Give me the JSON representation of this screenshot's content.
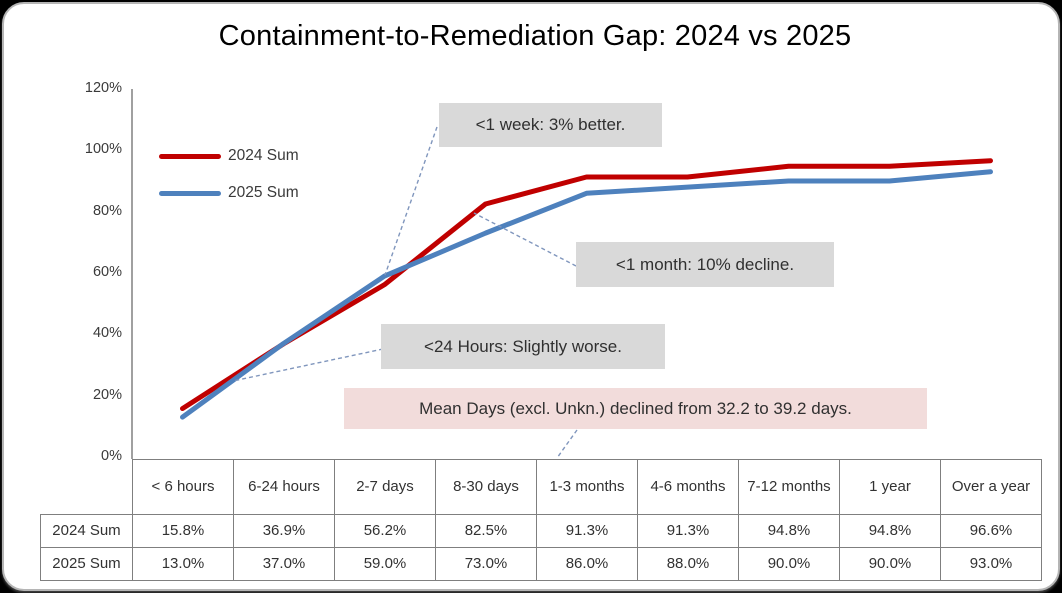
{
  "title": "Containment-to-Remediation Gap: 2024 vs 2025",
  "legend": {
    "items": [
      {
        "label": "2024 Sum",
        "color": "#c00000"
      },
      {
        "label": "2025 Sum",
        "color": "#4e81bd"
      }
    ]
  },
  "annotations": {
    "week": {
      "text": "<1 week: 3% better."
    },
    "month": {
      "text": "<1 month: 10% decline."
    },
    "hours": {
      "text": "<24 Hours: Slightly worse."
    },
    "mean": {
      "text": "Mean Days (excl. Unkn.) declined from 32.2 to 39.2 days."
    }
  },
  "colors": {
    "series_2024": "#c00000",
    "series_2025": "#4e81bd",
    "callout_gray": "#d9d9d9",
    "callout_pink": "#f2dcdb",
    "axis_gray": "#808080",
    "leader_blue": "#8096bd"
  },
  "chart_data": {
    "type": "line",
    "title": "Containment-to-Remediation Gap: 2024 vs 2025",
    "categories": [
      "< 6 hours",
      "6-24 hours",
      "2-7 days",
      "8-30 days",
      "1-3 months",
      "4-6 months",
      "7-12 months",
      "1 year",
      "Over a year"
    ],
    "series": [
      {
        "name": "2024 Sum",
        "color": "#c00000",
        "values": [
          15.8,
          36.9,
          56.2,
          82.5,
          91.3,
          91.3,
          94.8,
          94.8,
          96.6
        ]
      },
      {
        "name": "2025 Sum",
        "color": "#4e81bd",
        "values": [
          13.0,
          37.0,
          59.0,
          73.0,
          86.0,
          88.0,
          90.0,
          90.0,
          93.0
        ]
      }
    ],
    "xlabel": "",
    "ylabel": "",
    "ylim": [
      0,
      120
    ],
    "y_tick_step": 20,
    "y_tick_labels": [
      "0%",
      "20%",
      "40%",
      "60%",
      "80%",
      "100%",
      "120%"
    ],
    "grid": false,
    "legend_position": "inside-top-left"
  },
  "table": {
    "columns": [
      "< 6 hours",
      "6-24 hours",
      "2-7 days",
      "8-30 days",
      "1-3 months",
      "4-6 months",
      "7-12 months",
      "1 year",
      "Over a year"
    ],
    "rows": [
      {
        "label": "2024 Sum",
        "values": [
          "15.8%",
          "36.9%",
          "56.2%",
          "82.5%",
          "91.3%",
          "91.3%",
          "94.8%",
          "94.8%",
          "96.6%"
        ]
      },
      {
        "label": "2025 Sum",
        "values": [
          "13.0%",
          "37.0%",
          "59.0%",
          "73.0%",
          "86.0%",
          "88.0%",
          "90.0%",
          "90.0%",
          "93.0%"
        ]
      }
    ]
  }
}
